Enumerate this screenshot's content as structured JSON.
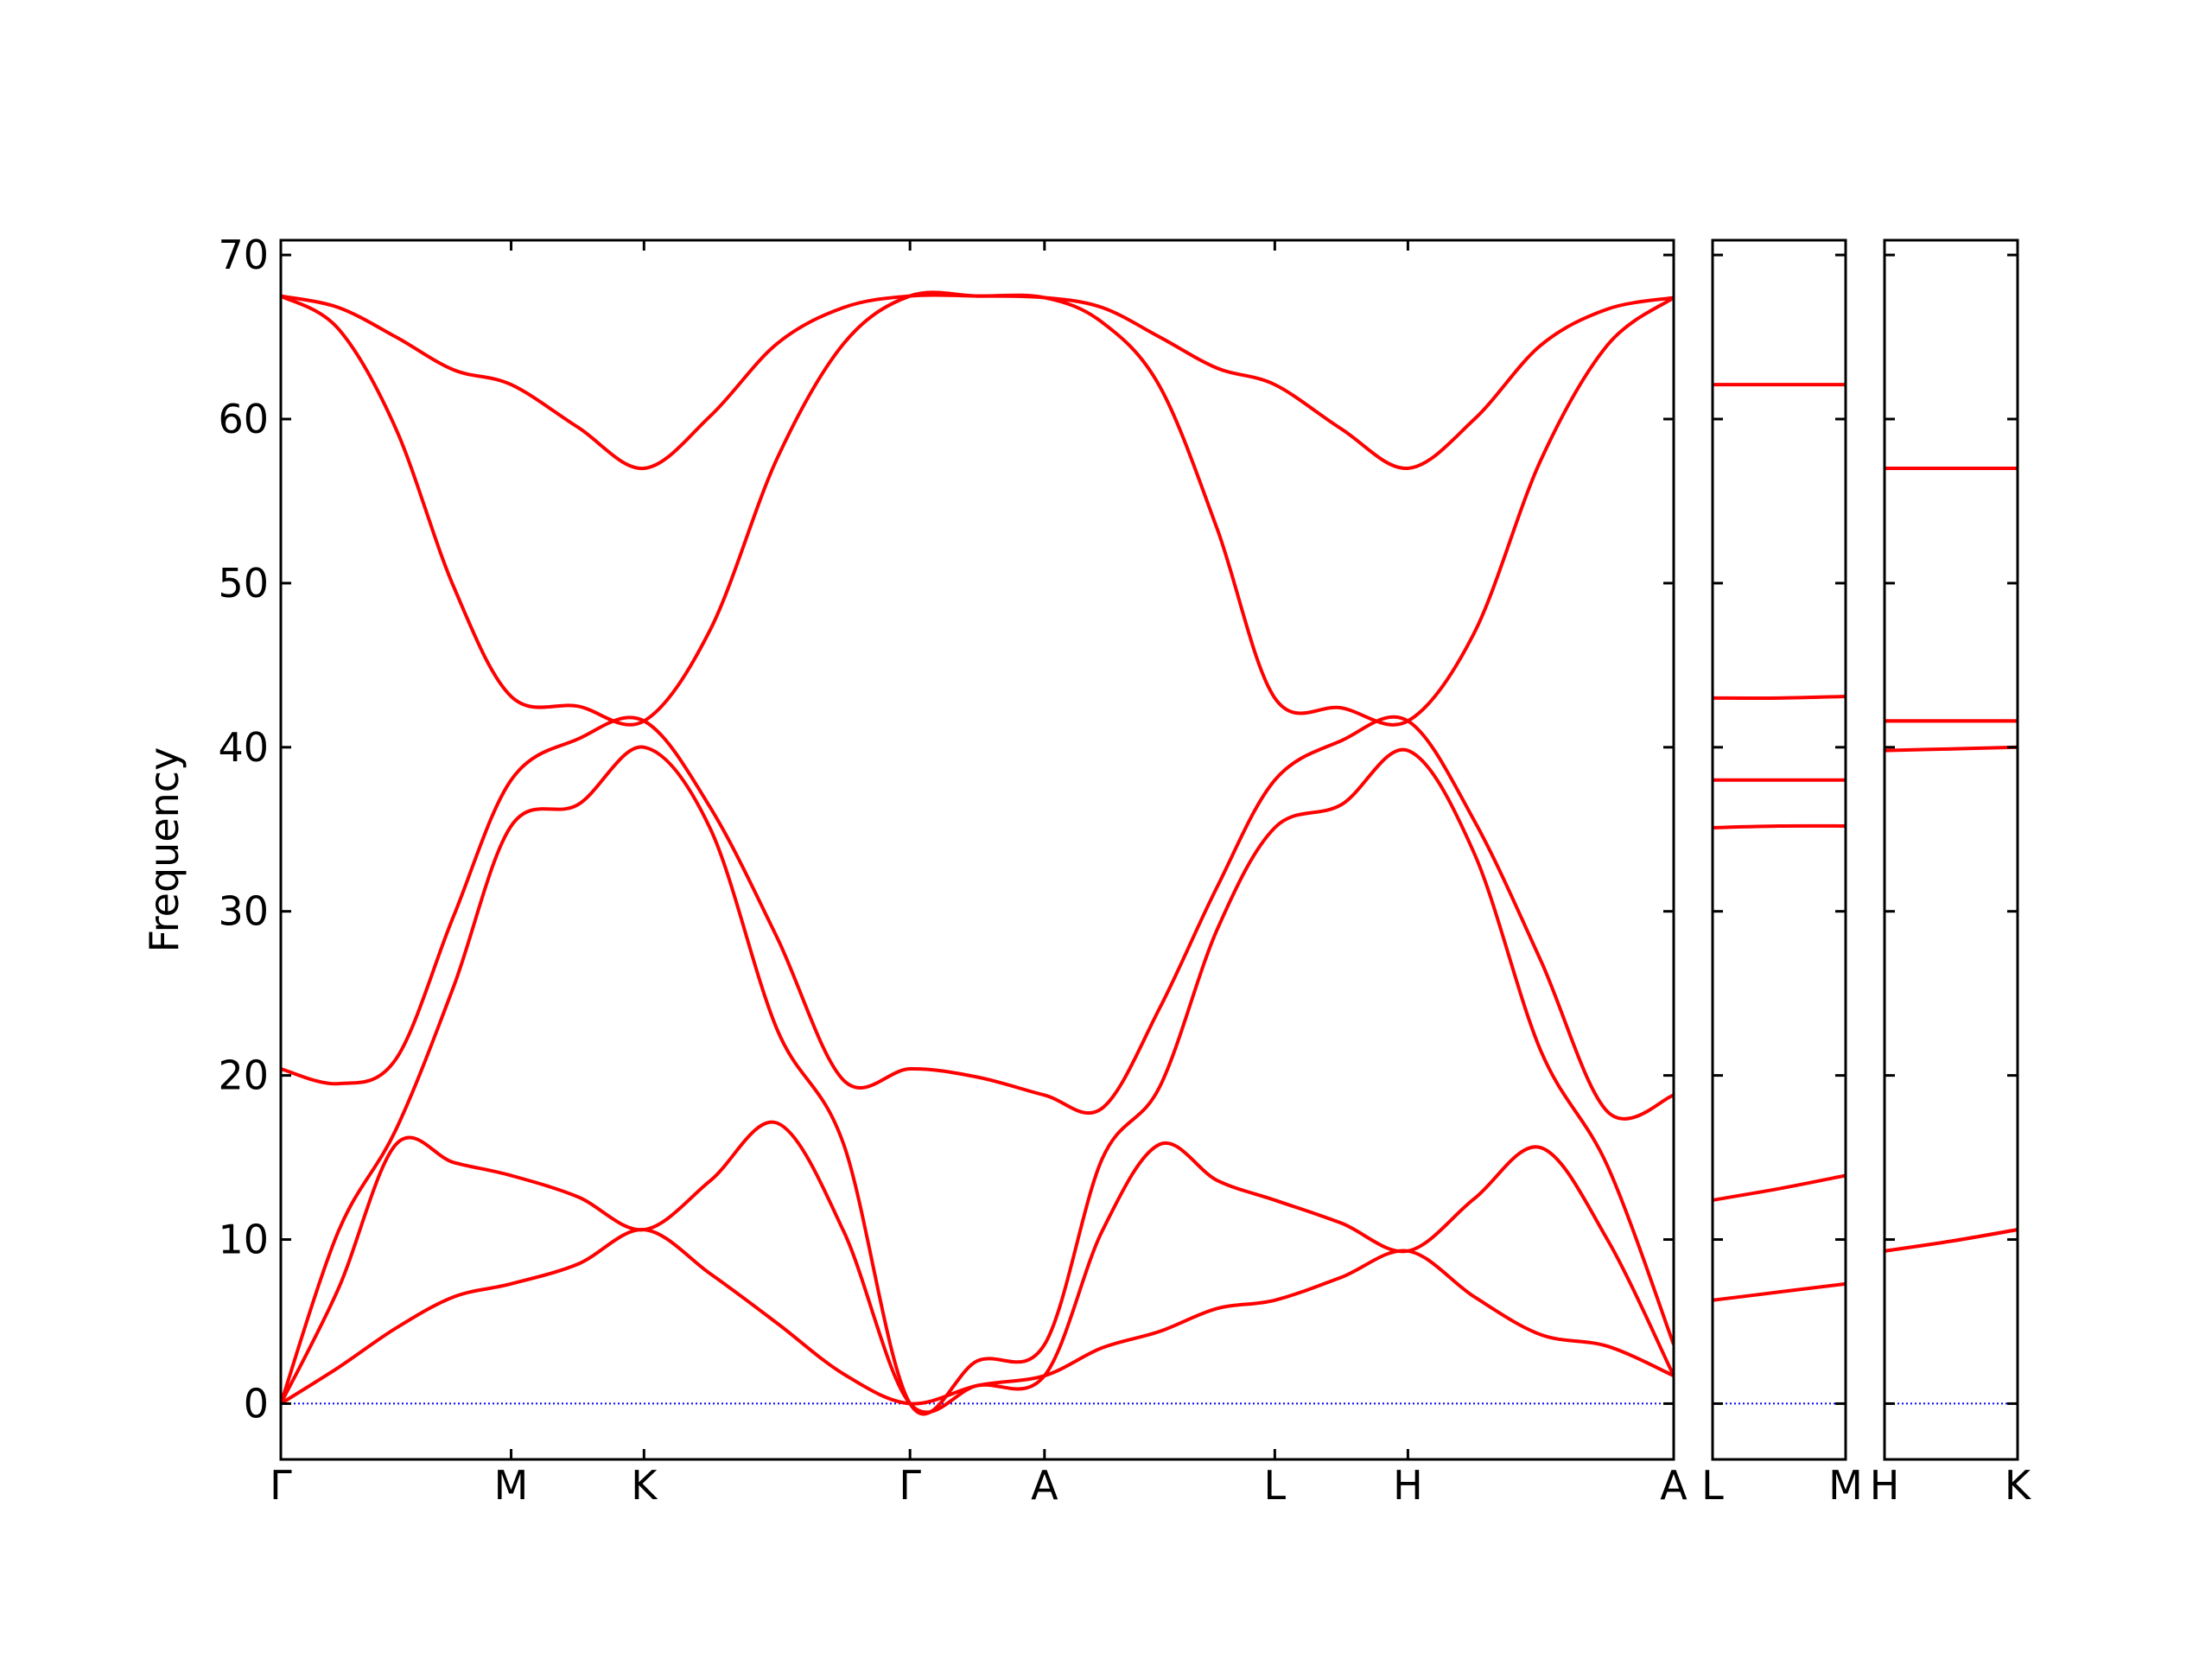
{
  "chart_data": [
    {
      "type": "line",
      "ylabel": "Frequency",
      "xlim": [
        0,
        6.048
      ],
      "ylim": [
        -3.4,
        70.9
      ],
      "xticks": [
        {
          "value": 0,
          "label": "Γ"
        },
        {
          "value": 1,
          "label": "M"
        },
        {
          "value": 1.577,
          "label": "K"
        },
        {
          "value": 2.732,
          "label": "Γ"
        },
        {
          "value": 3.316,
          "label": "A"
        },
        {
          "value": 4.316,
          "label": "L"
        },
        {
          "value": 4.894,
          "label": "H"
        },
        {
          "value": 6.048,
          "label": "A"
        }
      ],
      "yticks": [
        0,
        10,
        20,
        30,
        40,
        50,
        60,
        70
      ],
      "show_ytick_labels": true,
      "zero_line": {
        "value": 0,
        "color": "#0000ff"
      },
      "x": [
        0,
        0.25,
        0.5,
        0.75,
        1,
        1.29,
        1.577,
        1.866,
        2.155,
        2.444,
        2.732,
        3.024,
        3.316,
        3.566,
        3.816,
        4.066,
        4.316,
        4.605,
        4.894,
        5.183,
        5.471,
        5.76,
        6.048
      ],
      "series": [
        {
          "color": "#ff0000",
          "values": [
            0,
            2.2,
            4.6,
            6.5,
            7.3,
            8.5,
            10.6,
            7.9,
            4.9,
            1.8,
            0,
            1.1,
            1.7,
            3.4,
            4.4,
            5.8,
            6.3,
            7.7,
            9.3,
            6.5,
            4.2,
            3.5,
            1.7
          ]
        },
        {
          "color": "#ff0000",
          "values": [
            0,
            7,
            15.8,
            14.7,
            13.9,
            12.6,
            10.6,
            13.6,
            17.1,
            10.5,
            0,
            1.1,
            1.7,
            10.5,
            15.8,
            13.6,
            12.4,
            11.0,
            9.3,
            12.5,
            15.6,
            10,
            1.7
          ]
        },
        {
          "color": "#ff0000",
          "values": [
            0,
            10.5,
            16.7,
            25.4,
            35.2,
            36.5,
            40.0,
            35.0,
            22.8,
            15.8,
            0,
            2.6,
            3.6,
            14.9,
            19.3,
            28.9,
            35.1,
            36.5,
            39.8,
            33.5,
            21.5,
            14.5,
            3.6
          ]
        },
        {
          "color": "#ff0000",
          "values": [
            20.4,
            19.5,
            21,
            29.7,
            38.0,
            40.5,
            41.6,
            36.3,
            28.4,
            19.7,
            20.4,
            19.9,
            18.8,
            18.0,
            24.1,
            31.5,
            38.0,
            40.4,
            41.6,
            35.5,
            27,
            17.8,
            18.8
          ]
        },
        {
          "color": "#ff0000",
          "values": [
            67.5,
            65.5,
            59.4,
            49.8,
            43.1,
            42.5,
            41.6,
            47.2,
            57.6,
            64.6,
            67.5,
            67.5,
            67.4,
            65.9,
            62.0,
            53.3,
            43.0,
            42.4,
            41.6,
            47,
            57.5,
            64.5,
            67.4
          ]
        },
        {
          "color": "#ff0000",
          "values": [
            67.5,
            66.8,
            65,
            63,
            62.1,
            59.5,
            57.0,
            60.2,
            64.6,
            66.8,
            67.5,
            67.5,
            67.4,
            66.8,
            65.0,
            63.1,
            62.1,
            59.4,
            57.0,
            60,
            64.5,
            66.7,
            67.4
          ]
        }
      ]
    },
    {
      "type": "line",
      "xlim": [
        0,
        1
      ],
      "ylim": [
        -3.4,
        70.9
      ],
      "xticks": [
        {
          "value": 0,
          "label": "L"
        },
        {
          "value": 1,
          "label": "M"
        }
      ],
      "yticks": [
        0,
        10,
        20,
        30,
        40,
        50,
        60,
        70
      ],
      "show_ytick_labels": false,
      "zero_line": {
        "value": 0,
        "color": "#0000ff"
      },
      "x": [
        0,
        0.5,
        1
      ],
      "series": [
        {
          "color": "#ff0000",
          "values": [
            6.3,
            6.8,
            7.3
          ]
        },
        {
          "color": "#ff0000",
          "values": [
            12.4,
            13.1,
            13.9
          ]
        },
        {
          "color": "#ff0000",
          "values": [
            35.1,
            35.2,
            35.2
          ]
        },
        {
          "color": "#ff0000",
          "values": [
            38.0,
            38.0,
            38.0
          ]
        },
        {
          "color": "#ff0000",
          "values": [
            43.0,
            43.0,
            43.1
          ]
        },
        {
          "color": "#ff0000",
          "values": [
            62.1,
            62.1,
            62.1
          ]
        }
      ]
    },
    {
      "type": "line",
      "xlim": [
        0,
        1
      ],
      "ylim": [
        -3.4,
        70.9
      ],
      "xticks": [
        {
          "value": 0,
          "label": "H"
        },
        {
          "value": 1,
          "label": "K"
        }
      ],
      "yticks": [
        0,
        10,
        20,
        30,
        40,
        50,
        60,
        70
      ],
      "show_ytick_labels": false,
      "zero_line": {
        "value": 0,
        "color": "#0000ff"
      },
      "x": [
        0,
        0.5,
        1
      ],
      "series": [
        {
          "color": "#ff0000",
          "values": [
            9.3,
            9.9,
            10.6
          ]
        },
        {
          "color": "#ff0000",
          "values": [
            9.3,
            9.9,
            10.6
          ]
        },
        {
          "color": "#ff0000",
          "values": [
            39.8,
            39.9,
            40.0
          ]
        },
        {
          "color": "#ff0000",
          "values": [
            41.6,
            41.6,
            41.6
          ]
        },
        {
          "color": "#ff0000",
          "values": [
            41.6,
            41.6,
            41.6
          ]
        },
        {
          "color": "#ff0000",
          "values": [
            57.0,
            57.0,
            57.0
          ]
        }
      ]
    }
  ]
}
